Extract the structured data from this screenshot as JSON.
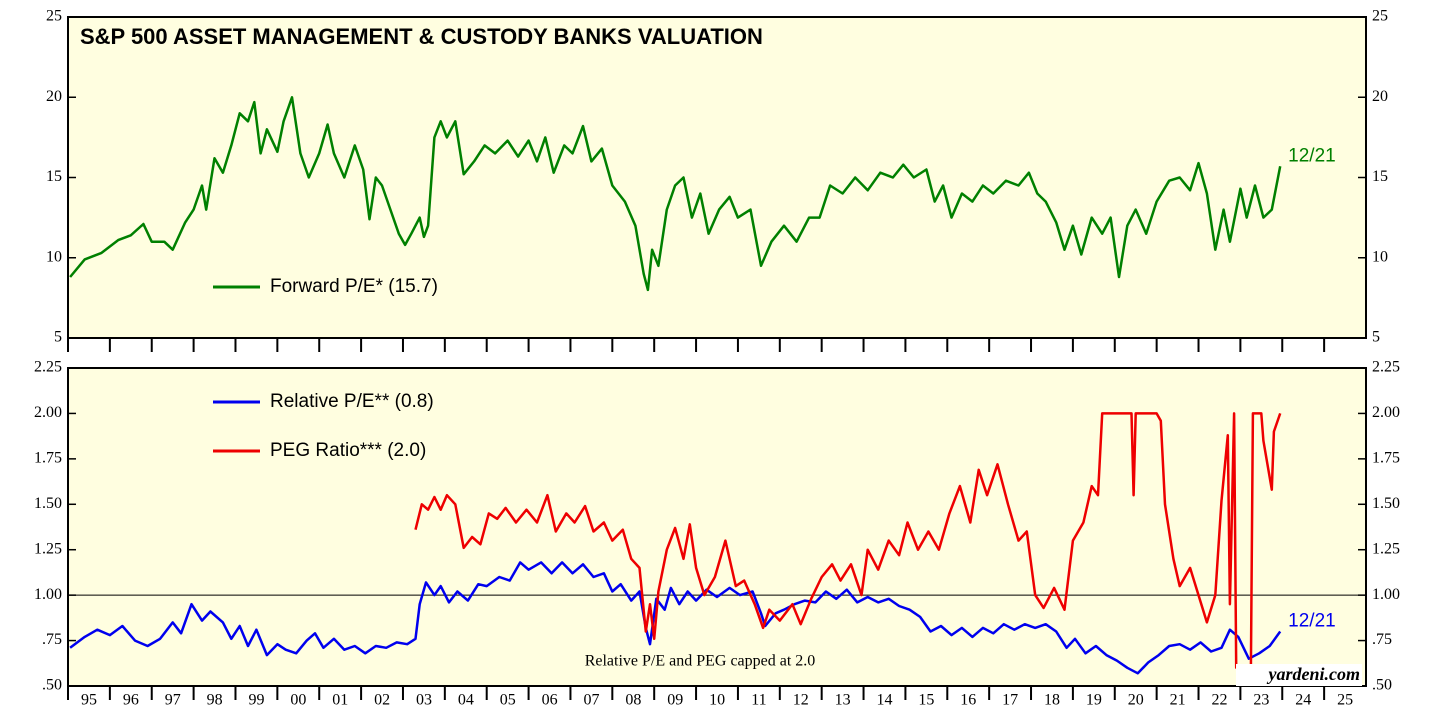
{
  "chart_data": [
    {
      "type": "line",
      "title": "S&P 500 ASSET MANAGEMENT & CUSTODY BANKS VALUATION",
      "xlim": [
        1995,
        2026
      ],
      "ylim": [
        5,
        25
      ],
      "yticks": [
        5,
        10,
        15,
        20,
        25
      ],
      "series": [
        {
          "name": "Forward P/E* (15.7)",
          "color": "#008000",
          "end_label": "12/21",
          "x": [
            1995.05,
            1995.4,
            1995.8,
            1996.2,
            1996.5,
            1996.8,
            1997.0,
            1997.3,
            1997.5,
            1997.8,
            1998.0,
            1998.2,
            1998.3,
            1998.5,
            1998.7,
            1998.9,
            1999.1,
            1999.3,
            1999.45,
            1999.6,
            1999.75,
            2000.0,
            2000.15,
            2000.35,
            2000.55,
            2000.75,
            2001.0,
            2001.2,
            2001.35,
            2001.6,
            2001.85,
            2002.05,
            2002.2,
            2002.35,
            2002.5,
            2002.7,
            2002.9,
            2003.05,
            2003.2,
            2003.4,
            2003.5,
            2003.6,
            2003.75,
            2003.9,
            2004.05,
            2004.25,
            2004.45,
            2004.7,
            2004.95,
            2005.2,
            2005.5,
            2005.75,
            2006.0,
            2006.2,
            2006.4,
            2006.6,
            2006.85,
            2007.05,
            2007.3,
            2007.5,
            2007.75,
            2008.0,
            2008.3,
            2008.55,
            2008.75,
            2008.85,
            2008.95,
            2009.1,
            2009.3,
            2009.5,
            2009.7,
            2009.9,
            2010.1,
            2010.3,
            2010.55,
            2010.8,
            2011.0,
            2011.3,
            2011.55,
            2011.8,
            2012.1,
            2012.4,
            2012.7,
            2012.95,
            2013.2,
            2013.5,
            2013.8,
            2014.1,
            2014.4,
            2014.7,
            2014.95,
            2015.2,
            2015.5,
            2015.7,
            2015.9,
            2016.1,
            2016.35,
            2016.6,
            2016.85,
            2017.1,
            2017.4,
            2017.7,
            2017.95,
            2018.15,
            2018.35,
            2018.6,
            2018.8,
            2019.0,
            2019.2,
            2019.45,
            2019.7,
            2019.9,
            2020.1,
            2020.3,
            2020.5,
            2020.75,
            2021.0,
            2021.3,
            2021.55,
            2021.8,
            2022.0,
            2022.2,
            2022.4,
            2022.6,
            2022.75,
            2023.0,
            2023.15,
            2023.35,
            2023.55,
            2023.75,
            2023.95
          ],
          "values": [
            8.8,
            9.9,
            10.3,
            11.1,
            11.4,
            12.1,
            11.0,
            11.0,
            10.5,
            12.2,
            13.0,
            14.5,
            13.0,
            16.2,
            15.3,
            17.0,
            19.0,
            18.5,
            19.7,
            16.5,
            18.0,
            16.6,
            18.5,
            20.0,
            16.5,
            15.0,
            16.5,
            18.3,
            16.5,
            15.0,
            17.0,
            15.5,
            12.4,
            15.0,
            14.5,
            13.0,
            11.5,
            10.8,
            11.5,
            12.5,
            11.3,
            12.0,
            17.5,
            18.5,
            17.5,
            18.5,
            15.2,
            16.0,
            17.0,
            16.5,
            17.3,
            16.3,
            17.3,
            16.0,
            17.5,
            15.3,
            17.0,
            16.5,
            18.2,
            16.0,
            16.8,
            14.5,
            13.5,
            12.0,
            9.0,
            8.0,
            10.5,
            9.5,
            13.0,
            14.5,
            15.0,
            12.5,
            14.0,
            11.5,
            13.0,
            13.8,
            12.5,
            13.0,
            9.5,
            11.0,
            12.0,
            11.0,
            12.5,
            12.5,
            14.5,
            14.0,
            15.0,
            14.2,
            15.3,
            15.0,
            15.8,
            15.0,
            15.5,
            13.5,
            14.5,
            12.5,
            14.0,
            13.5,
            14.5,
            14.0,
            14.8,
            14.5,
            15.3,
            14.0,
            13.5,
            12.2,
            10.5,
            12.0,
            10.2,
            12.5,
            11.5,
            12.5,
            8.8,
            12.0,
            13.0,
            11.5,
            13.5,
            14.8,
            15.0,
            14.2,
            15.9,
            14.0,
            10.5,
            13.0,
            11.0,
            14.3,
            12.5,
            14.5,
            12.5,
            13.0,
            15.7
          ]
        }
      ]
    },
    {
      "type": "line",
      "xlim": [
        1995,
        2026
      ],
      "ylim": [
        0.5,
        2.25
      ],
      "yticks": [
        {
          "value": 0.5,
          "label": ".50"
        },
        {
          "value": 0.75,
          "label": ".75"
        },
        {
          "value": 1,
          "label": "1.00"
        },
        {
          "value": 1.25,
          "label": "1.25"
        },
        {
          "value": 1.5,
          "label": "1.50"
        },
        {
          "value": 1.75,
          "label": "1.75"
        },
        {
          "value": 2,
          "label": "2.00"
        },
        {
          "value": 2.25,
          "label": "2.25"
        }
      ],
      "xticks": [
        {
          "value": 1995,
          "label": "95"
        },
        {
          "value": 1996,
          "label": "96"
        },
        {
          "value": 1997,
          "label": "97"
        },
        {
          "value": 1998,
          "label": "98"
        },
        {
          "value": 1999,
          "label": "99"
        },
        {
          "value": 2000,
          "label": "00"
        },
        {
          "value": 2001,
          "label": "01"
        },
        {
          "value": 2002,
          "label": "02"
        },
        {
          "value": 2003,
          "label": "03"
        },
        {
          "value": 2004,
          "label": "04"
        },
        {
          "value": 2005,
          "label": "05"
        },
        {
          "value": 2006,
          "label": "06"
        },
        {
          "value": 2007,
          "label": "07"
        },
        {
          "value": 2008,
          "label": "08"
        },
        {
          "value": 2009,
          "label": "09"
        },
        {
          "value": 2010,
          "label": "10"
        },
        {
          "value": 2011,
          "label": "11"
        },
        {
          "value": 2012,
          "label": "12"
        },
        {
          "value": 2013,
          "label": "13"
        },
        {
          "value": 2014,
          "label": "14"
        },
        {
          "value": 2015,
          "label": "15"
        },
        {
          "value": 2016,
          "label": "16"
        },
        {
          "value": 2017,
          "label": "17"
        },
        {
          "value": 2018,
          "label": "18"
        },
        {
          "value": 2019,
          "label": "19"
        },
        {
          "value": 2020,
          "label": "20"
        },
        {
          "value": 2021,
          "label": "21"
        },
        {
          "value": 2022,
          "label": "22"
        },
        {
          "value": 2023,
          "label": "23"
        },
        {
          "value": 2024,
          "label": "24"
        },
        {
          "value": 2025,
          "label": "25"
        }
      ],
      "hline": 1,
      "note": "Relative P/E and PEG capped at 2.0",
      "source": "yardeni.com",
      "series": [
        {
          "name": "Relative P/E** (0.8)",
          "color": "#0000ee",
          "end_label": "12/21",
          "x": [
            1995.05,
            1995.4,
            1995.7,
            1996.0,
            1996.3,
            1996.6,
            1996.9,
            1997.2,
            1997.5,
            1997.7,
            1997.95,
            1998.2,
            1998.4,
            1998.7,
            1998.9,
            1999.1,
            1999.3,
            1999.5,
            1999.75,
            2000.0,
            2000.2,
            2000.45,
            2000.7,
            2000.9,
            2001.1,
            2001.35,
            2001.6,
            2001.85,
            2002.1,
            2002.35,
            2002.6,
            2002.85,
            2003.1,
            2003.3,
            2003.4,
            2003.55,
            2003.75,
            2003.9,
            2004.1,
            2004.3,
            2004.55,
            2004.8,
            2005.0,
            2005.3,
            2005.55,
            2005.8,
            2006.0,
            2006.3,
            2006.55,
            2006.8,
            2007.05,
            2007.3,
            2007.55,
            2007.8,
            2008.0,
            2008.2,
            2008.45,
            2008.65,
            2008.8,
            2008.9,
            2009.05,
            2009.25,
            2009.4,
            2009.6,
            2009.8,
            2010.0,
            2010.25,
            2010.5,
            2010.8,
            2011.05,
            2011.35,
            2011.55,
            2011.65,
            2011.9,
            2012.1,
            2012.35,
            2012.6,
            2012.85,
            2013.1,
            2013.35,
            2013.6,
            2013.85,
            2014.1,
            2014.35,
            2014.6,
            2014.85,
            2015.1,
            2015.35,
            2015.6,
            2015.85,
            2016.1,
            2016.35,
            2016.6,
            2016.85,
            2017.1,
            2017.35,
            2017.6,
            2017.85,
            2018.1,
            2018.35,
            2018.6,
            2018.85,
            2019.05,
            2019.3,
            2019.55,
            2019.8,
            2020.05,
            2020.3,
            2020.55,
            2020.8,
            2021.05,
            2021.3,
            2021.55,
            2021.8,
            2022.05,
            2022.3,
            2022.55,
            2022.75,
            2022.95,
            2023.2,
            2023.45,
            2023.7,
            2023.95
          ],
          "values": [
            0.71,
            0.77,
            0.81,
            0.78,
            0.83,
            0.75,
            0.72,
            0.76,
            0.85,
            0.79,
            0.95,
            0.86,
            0.91,
            0.85,
            0.76,
            0.83,
            0.72,
            0.81,
            0.67,
            0.73,
            0.7,
            0.68,
            0.75,
            0.79,
            0.71,
            0.76,
            0.7,
            0.72,
            0.68,
            0.72,
            0.71,
            0.74,
            0.73,
            0.76,
            0.95,
            1.07,
            1.0,
            1.05,
            0.96,
            1.02,
            0.97,
            1.06,
            1.05,
            1.1,
            1.08,
            1.18,
            1.14,
            1.18,
            1.12,
            1.18,
            1.12,
            1.17,
            1.1,
            1.12,
            1.02,
            1.06,
            0.97,
            1.02,
            0.82,
            0.73,
            0.98,
            0.92,
            1.04,
            0.95,
            1.02,
            0.97,
            1.03,
            0.99,
            1.04,
            1.0,
            1.02,
            0.9,
            0.83,
            0.9,
            0.92,
            0.95,
            0.97,
            0.96,
            1.02,
            0.98,
            1.03,
            0.96,
            0.99,
            0.96,
            0.98,
            0.94,
            0.92,
            0.88,
            0.8,
            0.83,
            0.78,
            0.82,
            0.77,
            0.82,
            0.79,
            0.84,
            0.81,
            0.84,
            0.82,
            0.84,
            0.8,
            0.71,
            0.76,
            0.68,
            0.72,
            0.67,
            0.64,
            0.6,
            0.57,
            0.63,
            0.67,
            0.72,
            0.73,
            0.7,
            0.74,
            0.69,
            0.71,
            0.81,
            0.77,
            0.65,
            0.68,
            0.72,
            0.8
          ]
        },
        {
          "name": "PEG Ratio*** (2.0)",
          "color": "#ee0000",
          "x": [
            2003.3,
            2003.45,
            2003.6,
            2003.75,
            2003.9,
            2004.05,
            2004.25,
            2004.45,
            2004.65,
            2004.85,
            2005.05,
            2005.25,
            2005.45,
            2005.7,
            2005.95,
            2006.2,
            2006.45,
            2006.65,
            2006.9,
            2007.1,
            2007.35,
            2007.55,
            2007.8,
            2008.0,
            2008.25,
            2008.45,
            2008.65,
            2008.8,
            2008.9,
            2009.0,
            2009.1,
            2009.3,
            2009.5,
            2009.7,
            2009.85,
            2010.0,
            2010.2,
            2010.45,
            2010.7,
            2010.95,
            2011.15,
            2011.4,
            2011.6,
            2011.75,
            2012.0,
            2012.3,
            2012.5,
            2012.75,
            2013.0,
            2013.25,
            2013.45,
            2013.7,
            2013.95,
            2014.1,
            2014.35,
            2014.6,
            2014.85,
            2015.05,
            2015.3,
            2015.55,
            2015.8,
            2016.05,
            2016.3,
            2016.55,
            2016.75,
            2016.95,
            2017.2,
            2017.45,
            2017.7,
            2017.9,
            2018.1,
            2018.3,
            2018.55,
            2018.8,
            2019.0,
            2019.25,
            2019.45,
            2019.6,
            2019.7,
            2020.4,
            2020.45,
            2020.5,
            2021.0,
            2021.1,
            2021.2,
            2021.4,
            2021.55,
            2021.8,
            2022.0,
            2022.2,
            2022.4,
            2022.55,
            2022.7,
            2022.75,
            2022.85,
            2022.9,
            2023.25,
            2023.3,
            2023.5,
            2023.55,
            2023.75,
            2023.8,
            2023.95
          ],
          "values": [
            1.36,
            1.5,
            1.47,
            1.54,
            1.47,
            1.55,
            1.5,
            1.26,
            1.32,
            1.28,
            1.45,
            1.42,
            1.48,
            1.4,
            1.47,
            1.4,
            1.55,
            1.35,
            1.45,
            1.4,
            1.49,
            1.35,
            1.4,
            1.3,
            1.36,
            1.2,
            1.15,
            0.8,
            0.95,
            0.76,
            1.02,
            1.25,
            1.37,
            1.2,
            1.39,
            1.15,
            1.0,
            1.1,
            1.3,
            1.05,
            1.08,
            0.95,
            0.82,
            0.92,
            0.86,
            0.95,
            0.84,
            0.98,
            1.1,
            1.17,
            1.08,
            1.17,
            1.0,
            1.25,
            1.14,
            1.3,
            1.22,
            1.4,
            1.25,
            1.35,
            1.25,
            1.45,
            1.6,
            1.4,
            1.69,
            1.55,
            1.72,
            1.5,
            1.3,
            1.35,
            1.0,
            0.93,
            1.04,
            0.92,
            1.3,
            1.4,
            1.6,
            1.55,
            2.0,
            2.0,
            1.55,
            2.0,
            2.0,
            1.96,
            1.5,
            1.2,
            1.05,
            1.15,
            1.0,
            0.85,
            1.0,
            1.52,
            1.88,
            0.95,
            2.0,
            0.6,
            0.6,
            2.0,
            2.0,
            1.85,
            1.58,
            1.9,
            2.0
          ]
        }
      ]
    }
  ]
}
